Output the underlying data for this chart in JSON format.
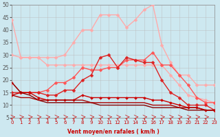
{
  "xlabel": "Vent moyen/en rafales ( km/h )",
  "xlim": [
    0,
    23
  ],
  "ylim": [
    5,
    50
  ],
  "yticks": [
    5,
    10,
    15,
    20,
    25,
    30,
    35,
    40,
    45,
    50
  ],
  "xticks": [
    0,
    1,
    2,
    3,
    4,
    5,
    6,
    7,
    8,
    9,
    10,
    11,
    12,
    13,
    14,
    15,
    16,
    17,
    18,
    19,
    20,
    21,
    22,
    23
  ],
  "background_color": "#cde8f0",
  "grid_color": "#bbbbbb",
  "series": [
    {
      "y": [
        44,
        29,
        29,
        29,
        29,
        29,
        30,
        35,
        40,
        40,
        46,
        46,
        46,
        41,
        44,
        48,
        50,
        34,
        27,
        22,
        22,
        18,
        18,
        18
      ],
      "color": "#ffaaaa",
      "linewidth": 1.0,
      "marker": "D",
      "markersize": 2.5
    },
    {
      "y": [
        30,
        29,
        29,
        29,
        26,
        26,
        26,
        26,
        26,
        26,
        26,
        26,
        26,
        26,
        26,
        26,
        26,
        26,
        22,
        18,
        14,
        13,
        12,
        11
      ],
      "color": "#ffaaaa",
      "linewidth": 1.0,
      "marker": "D",
      "markersize": 2.5
    },
    {
      "y": [
        19,
        15,
        15,
        15,
        16,
        19,
        19,
        21,
        25,
        24,
        24,
        25,
        25,
        28,
        28,
        28,
        31,
        26,
        26,
        22,
        18,
        13,
        11,
        11
      ],
      "color": "#ff5555",
      "linewidth": 1.0,
      "marker": "D",
      "markersize": 2.5
    },
    {
      "y": [
        15,
        15,
        15,
        15,
        14,
        14,
        16,
        16,
        20,
        22,
        29,
        30,
        25,
        29,
        28,
        27,
        27,
        20,
        15,
        13,
        10,
        10,
        10,
        8
      ],
      "color": "#dd2222",
      "linewidth": 1.0,
      "marker": "D",
      "markersize": 2.5
    },
    {
      "y": [
        14,
        15,
        15,
        13,
        12,
        12,
        12,
        12,
        14,
        13,
        13,
        13,
        13,
        13,
        13,
        13,
        12,
        12,
        11,
        10,
        9,
        9,
        8,
        8
      ],
      "color": "#cc0000",
      "linewidth": 1.0,
      "marker": "D",
      "markersize": 2.0
    },
    {
      "y": [
        19,
        15,
        14,
        12,
        11,
        11,
        11,
        11,
        11,
        11,
        10,
        10,
        10,
        10,
        10,
        10,
        9,
        9,
        9,
        9,
        8,
        8,
        8,
        8
      ],
      "color": "#880000",
      "linewidth": 1.0,
      "marker": null,
      "markersize": 0
    },
    {
      "y": [
        14,
        13,
        13,
        12,
        12,
        12,
        12,
        12,
        12,
        11,
        11,
        11,
        11,
        11,
        11,
        11,
        10,
        10,
        10,
        9,
        9,
        9,
        8,
        8
      ],
      "color": "#aa0000",
      "linewidth": 1.0,
      "marker": null,
      "markersize": 0
    }
  ]
}
